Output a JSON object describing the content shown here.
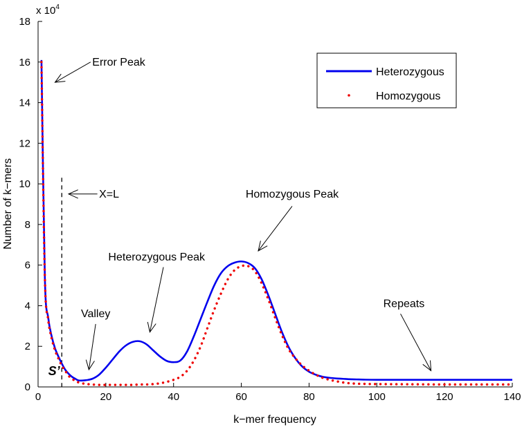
{
  "chart_data": {
    "type": "line",
    "title": "",
    "xlabel": "k−mer frequency",
    "ylabel": "Number of k−mers",
    "y_exponent_label": "x 10",
    "y_exponent_power": "4",
    "xlim": [
      0,
      140
    ],
    "ylim": [
      0,
      18
    ],
    "xticks": [
      0,
      20,
      40,
      60,
      80,
      100,
      120,
      140
    ],
    "xtick_labels": [
      "0",
      "20",
      "40",
      "60",
      "80",
      "100",
      "120",
      "140"
    ],
    "yticks": [
      0,
      2,
      4,
      6,
      8,
      10,
      12,
      14,
      16,
      18
    ],
    "ytick_labels": [
      "0",
      "2",
      "4",
      "6",
      "8",
      "10",
      "12",
      "14",
      "16",
      "18"
    ],
    "grid": false,
    "legend_position": "top-right",
    "series": [
      {
        "name": "Heterozygous",
        "style": "solid",
        "color": "#0000ee",
        "x": [
          1,
          2,
          3,
          4,
          5,
          6,
          7,
          8,
          9,
          10,
          11,
          12,
          14,
          16,
          18,
          20,
          22,
          24,
          26,
          28,
          30,
          32,
          34,
          36,
          38,
          40,
          42,
          44,
          46,
          48,
          50,
          52,
          54,
          56,
          58,
          60,
          62,
          64,
          66,
          68,
          70,
          72,
          74,
          76,
          78,
          80,
          82,
          84,
          86,
          88,
          90,
          92,
          94,
          96,
          100,
          110,
          120,
          130,
          140
        ],
        "y": [
          16.1,
          5.4,
          3.4,
          2.5,
          1.9,
          1.5,
          1.15,
          0.85,
          0.65,
          0.5,
          0.4,
          0.32,
          0.33,
          0.4,
          0.6,
          0.95,
          1.35,
          1.75,
          2.05,
          2.22,
          2.25,
          2.1,
          1.8,
          1.5,
          1.28,
          1.22,
          1.3,
          1.75,
          2.5,
          3.35,
          4.2,
          5.0,
          5.6,
          5.95,
          6.12,
          6.18,
          6.1,
          5.85,
          5.3,
          4.5,
          3.6,
          2.7,
          1.95,
          1.4,
          1.0,
          0.75,
          0.6,
          0.5,
          0.45,
          0.42,
          0.4,
          0.38,
          0.37,
          0.36,
          0.35,
          0.35,
          0.35,
          0.35,
          0.35
        ]
      },
      {
        "name": "Homozygous",
        "style": "dotted",
        "color": "#ee0000",
        "x": [
          1,
          2,
          3,
          4,
          5,
          6,
          7,
          8,
          9,
          10,
          11,
          12,
          14,
          16,
          18,
          20,
          22,
          24,
          26,
          28,
          30,
          32,
          34,
          36,
          38,
          40,
          42,
          44,
          46,
          48,
          50,
          52,
          54,
          56,
          58,
          60,
          62,
          64,
          66,
          68,
          70,
          72,
          74,
          76,
          78,
          80,
          82,
          84,
          86,
          88,
          90,
          92,
          94,
          96,
          100,
          110,
          120,
          130,
          140
        ],
        "y": [
          16.0,
          5.4,
          3.3,
          2.4,
          1.8,
          1.4,
          1.05,
          0.8,
          0.55,
          0.4,
          0.3,
          0.22,
          0.15,
          0.12,
          0.1,
          0.1,
          0.1,
          0.1,
          0.1,
          0.1,
          0.12,
          0.12,
          0.14,
          0.18,
          0.25,
          0.35,
          0.5,
          0.8,
          1.3,
          2.0,
          2.9,
          3.8,
          4.6,
          5.3,
          5.75,
          5.95,
          5.95,
          5.7,
          5.1,
          4.3,
          3.4,
          2.55,
          1.85,
          1.4,
          1.05,
          0.8,
          0.6,
          0.45,
          0.35,
          0.28,
          0.22,
          0.18,
          0.16,
          0.15,
          0.14,
          0.13,
          0.12,
          0.12,
          0.12
        ]
      }
    ],
    "vline": {
      "x": 7,
      "y_top": 10.3
    },
    "annotations": [
      {
        "id": "error-peak",
        "text": "Error Peak",
        "text_x": 16,
        "text_y": 16.0,
        "arrow_from_x": 15.5,
        "arrow_from_y": 16.0,
        "arrow_to_x": 5,
        "arrow_to_y": 15.0
      },
      {
        "id": "x-equals-l",
        "text": "X=L",
        "text_x": 18,
        "text_y": 9.5,
        "arrow_from_x": 17.5,
        "arrow_from_y": 9.5,
        "arrow_to_x": 9,
        "arrow_to_y": 9.5
      },
      {
        "id": "homozygous-peak",
        "text": "Homozygous Peak",
        "text_x": 75,
        "text_y": 9.5,
        "arrow_from_x": 75,
        "arrow_from_y": 8.9,
        "arrow_to_x": 65,
        "arrow_to_y": 6.7
      },
      {
        "id": "heterozygous-peak",
        "text": "Heterozygous Peak",
        "text_x": 35,
        "text_y": 6.4,
        "arrow_from_x": 37,
        "arrow_from_y": 5.9,
        "arrow_to_x": 33,
        "arrow_to_y": 2.7
      },
      {
        "id": "valley",
        "text": "Valley",
        "text_x": 17,
        "text_y": 3.6,
        "arrow_from_x": 17,
        "arrow_from_y": 3.1,
        "arrow_to_x": 15,
        "arrow_to_y": 0.85
      },
      {
        "id": "repeats",
        "text": "Repeats",
        "text_x": 108,
        "text_y": 4.1,
        "arrow_from_x": 107,
        "arrow_from_y": 3.6,
        "arrow_to_x": 116,
        "arrow_to_y": 0.8
      },
      {
        "id": "s-prime",
        "text": "S’",
        "text_x": 3,
        "text_y": 0.75,
        "bold_italic": true
      }
    ]
  }
}
